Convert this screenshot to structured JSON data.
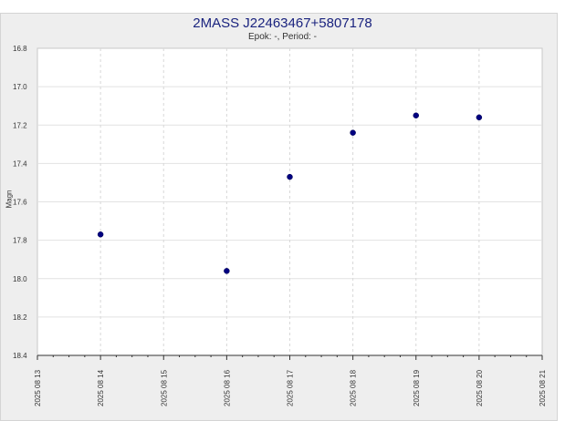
{
  "chart_data": {
    "type": "scatter",
    "title": "2MASS J22463467+5807178",
    "subtitle": "Epok: -, Period: -",
    "xlabel": "",
    "ylabel": "Magn",
    "x_ticks": [
      "2025 08 13",
      "2025 08 14",
      "2025 08 15",
      "2025 08 16",
      "2025 08 17",
      "2025 08 18",
      "2025 08 19",
      "2025 08 20",
      "2025 08 21"
    ],
    "y_ticks": [
      "16.8",
      "17.0",
      "17.2",
      "17.4",
      "17.6",
      "17.8",
      "18.0",
      "18.2",
      "18.4"
    ],
    "ylim": [
      16.8,
      18.4
    ],
    "y_inverted": true,
    "xlim": [
      "2025-08-13",
      "2025-08-21"
    ],
    "grid": true,
    "marker_color": "#000080",
    "points": [
      {
        "x": "2025-08-14",
        "y": 17.77
      },
      {
        "x": "2025-08-16",
        "y": 17.96
      },
      {
        "x": "2025-08-17",
        "y": 17.47
      },
      {
        "x": "2025-08-18",
        "y": 17.24
      },
      {
        "x": "2025-08-19",
        "y": 17.15
      },
      {
        "x": "2025-08-20",
        "y": 17.16
      }
    ]
  }
}
